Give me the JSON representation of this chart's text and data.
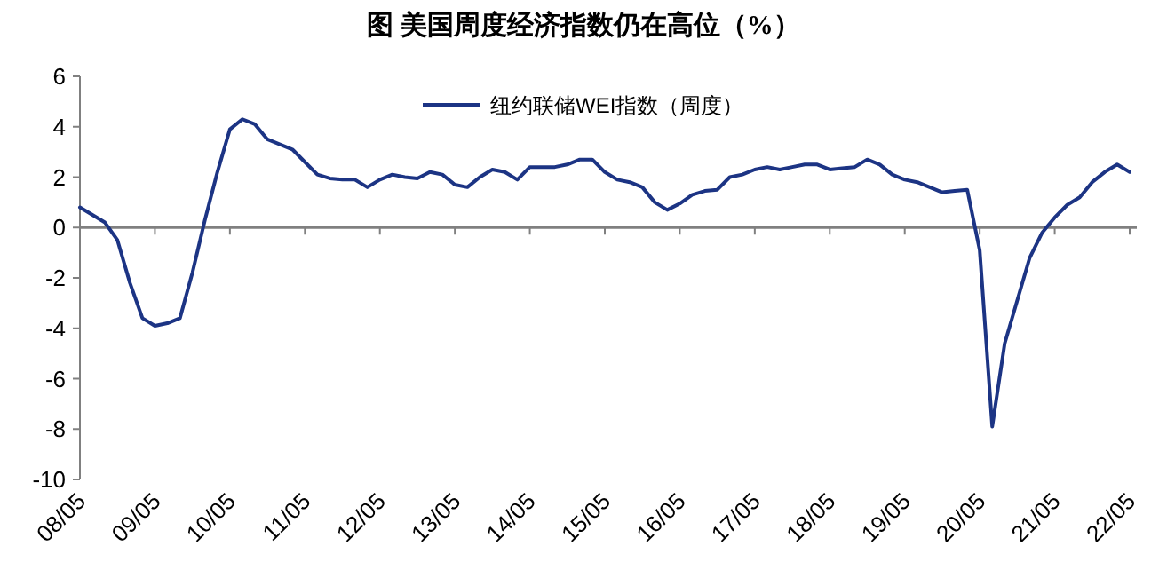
{
  "chart_data": {
    "type": "line",
    "title": "图  美国周度经济指数仍在高位（%）",
    "categories": [
      "08/05",
      null,
      null,
      null,
      null,
      null,
      "09/05",
      null,
      null,
      null,
      null,
      null,
      "10/05",
      null,
      null,
      null,
      null,
      null,
      "11/05",
      null,
      null,
      null,
      null,
      null,
      "12/05",
      null,
      null,
      null,
      null,
      null,
      "13/05",
      null,
      null,
      null,
      null,
      null,
      "14/05",
      null,
      null,
      null,
      null,
      null,
      "15/05",
      null,
      null,
      null,
      null,
      null,
      "16/05",
      null,
      null,
      null,
      null,
      null,
      "17/05",
      null,
      null,
      null,
      null,
      null,
      "18/05",
      null,
      null,
      null,
      null,
      null,
      "19/05",
      null,
      null,
      null,
      null,
      null,
      "20/05",
      null,
      null,
      null,
      null,
      null,
      "21/05",
      null,
      null,
      null,
      null,
      null,
      "22/05"
    ],
    "series": [
      {
        "name": "纽约联储WEI指数（周度）",
        "color": "#1c3484",
        "values": [
          0.8,
          0.5,
          0.2,
          -0.5,
          -2.2,
          -3.6,
          -3.9,
          -3.8,
          -3.6,
          -1.8,
          0.3,
          2.2,
          3.9,
          4.3,
          4.1,
          3.5,
          3.3,
          3.1,
          2.6,
          2.1,
          1.95,
          1.9,
          1.9,
          1.6,
          1.9,
          2.1,
          2.0,
          1.95,
          2.2,
          2.1,
          1.7,
          1.6,
          2.0,
          2.3,
          2.2,
          1.9,
          2.4,
          2.4,
          2.4,
          2.5,
          2.7,
          2.7,
          2.2,
          1.9,
          1.8,
          1.6,
          1.0,
          0.7,
          0.95,
          1.3,
          1.45,
          1.5,
          2.0,
          2.1,
          2.3,
          2.4,
          2.3,
          2.4,
          2.5,
          2.5,
          2.3,
          2.35,
          2.4,
          2.7,
          2.5,
          2.1,
          1.9,
          1.8,
          1.6,
          1.4,
          1.45,
          1.5,
          -0.9,
          -7.9,
          -4.6,
          -2.9,
          -1.2,
          -0.2,
          0.4,
          0.9,
          1.2,
          1.8,
          2.2,
          2.5,
          2.2
        ]
      }
    ],
    "ylim": [
      -10,
      6
    ],
    "yticks": [
      -10,
      -8,
      -6,
      -4,
      -2,
      0,
      2,
      4,
      6
    ],
    "legend": "top"
  }
}
